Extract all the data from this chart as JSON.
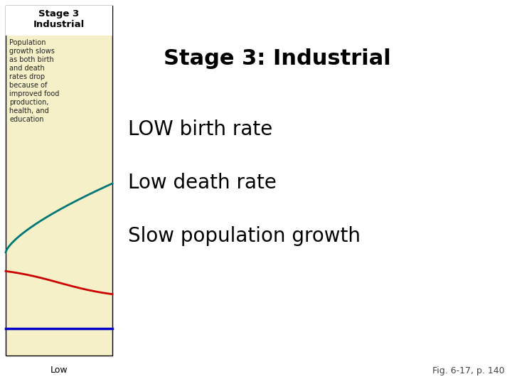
{
  "title": "Stage 3: Industrial",
  "title_fontsize": 22,
  "title_fontweight": "bold",
  "line1": "LOW birth rate",
  "line2": "Low death rate",
  "line3": "Slow population growth",
  "text_fontsize": 20,
  "panel_header1": "Stage 3",
  "panel_header2": "Industrial",
  "panel_header_fontsize": 9.5,
  "panel_header_fontweight": "bold",
  "panel_text": "Population\ngrowth slows\nas both birth\nand death\nrates drop\nbecause of\nimproved food\nproduction,\nhealth, and\neducation",
  "panel_text_fontsize": 7,
  "panel_bg_color": "#f5f0c8",
  "panel_border_color": "#000000",
  "teal_line_color": "#007777",
  "red_line_color": "#cc0000",
  "blue_line_color": "#0000cc",
  "xlabel_text": "Low",
  "xlabel_fontsize": 9,
  "fig_note": "Fig. 6-17, p. 140",
  "fig_note_fontsize": 9,
  "bg_color": "#ffffff"
}
